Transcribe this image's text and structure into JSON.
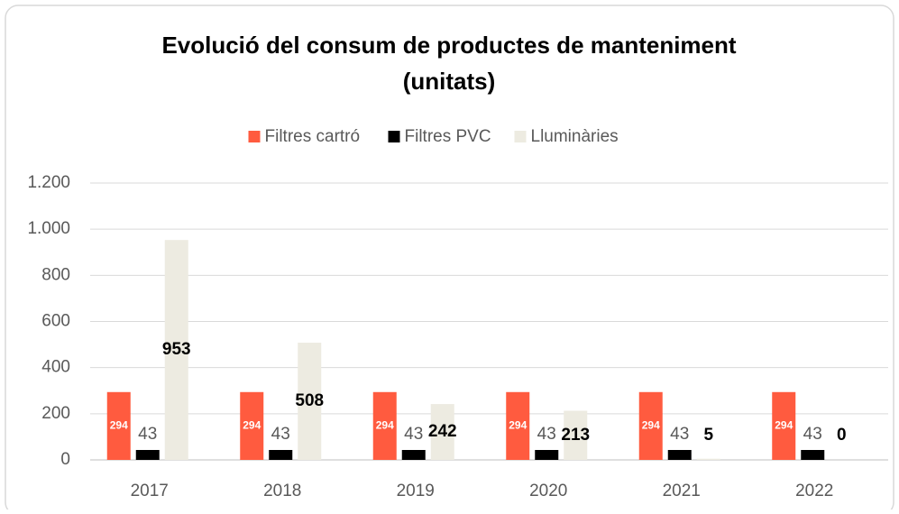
{
  "chart_data": {
    "type": "bar",
    "title": [
      "Evolució del consum de productes de manteniment",
      "(unitats)"
    ],
    "categories": [
      "2017",
      "2018",
      "2019",
      "2020",
      "2021",
      "2022"
    ],
    "series": [
      {
        "name": "Filtres cartró",
        "color": "#ff5b3f",
        "values": [
          294,
          294,
          294,
          294,
          294,
          294
        ]
      },
      {
        "name": "Filtres PVC",
        "color": "#000000",
        "values": [
          43,
          43,
          43,
          43,
          43,
          43
        ]
      },
      {
        "name": "Lluminàries",
        "color": "#edebe1",
        "values": [
          953,
          508,
          242,
          213,
          5,
          0
        ]
      }
    ],
    "ylim": [
      0,
      1200
    ],
    "yticks": [
      0,
      200,
      400,
      600,
      800,
      {
        "value": 1000,
        "label": "1.000"
      },
      {
        "value": 1200,
        "label": "1.200"
      }
    ],
    "grid": true,
    "legend": "top"
  }
}
